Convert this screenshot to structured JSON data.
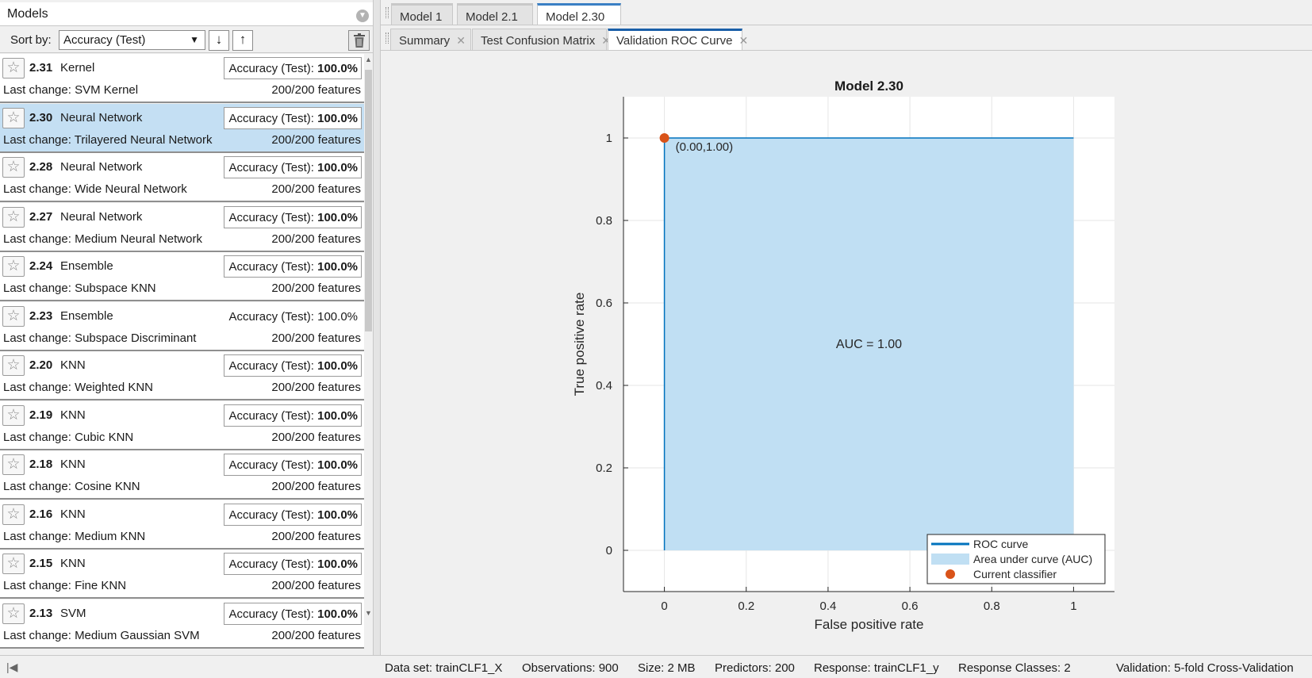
{
  "models_panel": {
    "title": "Models",
    "sort_label": "Sort by:",
    "sort_value": "Accuracy (Test)",
    "sort_desc_icon": "arrow-down",
    "sort_asc_icon": "arrow-up",
    "items": [
      {
        "id": "2.31",
        "type": "Kernel",
        "acc_label": "Accuracy (Test): ",
        "acc_value": "100.0%",
        "last_change": "Last change: SVM Kernel",
        "features": "200/200 features",
        "selected": false,
        "boxed": true
      },
      {
        "id": "2.30",
        "type": "Neural Network",
        "acc_label": "Accuracy (Test): ",
        "acc_value": "100.0%",
        "last_change": "Last change: Trilayered Neural Network",
        "features": "200/200 features",
        "selected": true,
        "boxed": true
      },
      {
        "id": "2.28",
        "type": "Neural Network",
        "acc_label": "Accuracy (Test): ",
        "acc_value": "100.0%",
        "last_change": "Last change: Wide Neural Network",
        "features": "200/200 features",
        "selected": false,
        "boxed": true
      },
      {
        "id": "2.27",
        "type": "Neural Network",
        "acc_label": "Accuracy (Test): ",
        "acc_value": "100.0%",
        "last_change": "Last change: Medium Neural Network",
        "features": "200/200 features",
        "selected": false,
        "boxed": true
      },
      {
        "id": "2.24",
        "type": "Ensemble",
        "acc_label": "Accuracy (Test): ",
        "acc_value": "100.0%",
        "last_change": "Last change: Subspace KNN",
        "features": "200/200 features",
        "selected": false,
        "boxed": true
      },
      {
        "id": "2.23",
        "type": "Ensemble",
        "acc_label": "Accuracy (Test): ",
        "acc_value": "100.0%",
        "last_change": "Last change: Subspace Discriminant",
        "features": "200/200 features",
        "selected": false,
        "boxed": false
      },
      {
        "id": "2.20",
        "type": "KNN",
        "acc_label": "Accuracy (Test): ",
        "acc_value": "100.0%",
        "last_change": "Last change: Weighted KNN",
        "features": "200/200 features",
        "selected": false,
        "boxed": true
      },
      {
        "id": "2.19",
        "type": "KNN",
        "acc_label": "Accuracy (Test): ",
        "acc_value": "100.0%",
        "last_change": "Last change: Cubic KNN",
        "features": "200/200 features",
        "selected": false,
        "boxed": true
      },
      {
        "id": "2.18",
        "type": "KNN",
        "acc_label": "Accuracy (Test): ",
        "acc_value": "100.0%",
        "last_change": "Last change: Cosine KNN",
        "features": "200/200 features",
        "selected": false,
        "boxed": true
      },
      {
        "id": "2.16",
        "type": "KNN",
        "acc_label": "Accuracy (Test): ",
        "acc_value": "100.0%",
        "last_change": "Last change: Medium KNN",
        "features": "200/200 features",
        "selected": false,
        "boxed": true
      },
      {
        "id": "2.15",
        "type": "KNN",
        "acc_label": "Accuracy (Test): ",
        "acc_value": "100.0%",
        "last_change": "Last change: Fine KNN",
        "features": "200/200 features",
        "selected": false,
        "boxed": true
      },
      {
        "id": "2.13",
        "type": "SVM",
        "acc_label": "Accuracy (Test): ",
        "acc_value": "100.0%",
        "last_change": "Last change: Medium Gaussian SVM",
        "features": "200/200 features",
        "selected": false,
        "boxed": true
      }
    ]
  },
  "model_tabs": [
    {
      "label": "Model 1",
      "active": false
    },
    {
      "label": "Model 2.1",
      "active": false
    },
    {
      "label": "Model 2.30",
      "active": true
    }
  ],
  "view_tabs": [
    {
      "label": "Summary",
      "active": false
    },
    {
      "label": "Test Confusion Matrix",
      "active": false
    },
    {
      "label": "Validation ROC Curve",
      "active": true
    }
  ],
  "colors": {
    "accent": "#0072bd",
    "auc_fill": "#c0dff3",
    "current_point": "#d95319",
    "selected_row": "#c4dff3"
  },
  "chart_data": {
    "type": "area",
    "title": "Model 2.30",
    "xlabel": "False positive rate",
    "ylabel": "True positive rate",
    "xlim": [
      -0.1,
      1.1
    ],
    "ylim": [
      -0.1,
      1.1
    ],
    "xticks": [
      0,
      0.2,
      0.4,
      0.6,
      0.8,
      1
    ],
    "xtick_labels": [
      "0",
      "0.2",
      "0.4",
      "0.6",
      "0.8",
      "1"
    ],
    "yticks": [
      0,
      0.2,
      0.4,
      0.6,
      0.8,
      1
    ],
    "ytick_labels": [
      "0",
      "0.2",
      "0.4",
      "0.6",
      "0.8",
      "1"
    ],
    "grid": true,
    "series": [
      {
        "name": "ROC curve",
        "x": [
          0,
          0,
          1
        ],
        "y": [
          0,
          1,
          1
        ],
        "color": "#0072bd"
      },
      {
        "name": "Area under curve (AUC)",
        "x": [
          0,
          0,
          1,
          1
        ],
        "y": [
          0,
          1,
          1,
          0
        ],
        "color": "#c0dff3"
      },
      {
        "name": "Current classifier",
        "x": [
          0
        ],
        "y": [
          1
        ],
        "color": "#d95319"
      }
    ],
    "point_label": "(0.00,1.00)",
    "auc_label": "AUC = 1.00",
    "legend_position": "bottom-right",
    "legend": [
      "ROC curve",
      "Area under curve (AUC)",
      "Current classifier"
    ]
  },
  "status_bar": {
    "dataset": "Data set: trainCLF1_X",
    "observations": "Observations: 900",
    "size": "Size: 2 MB",
    "predictors": "Predictors: 200",
    "response": "Response: trainCLF1_y",
    "response_classes": "Response Classes: 2",
    "validation": "Validation: 5-fold Cross-Validation"
  }
}
